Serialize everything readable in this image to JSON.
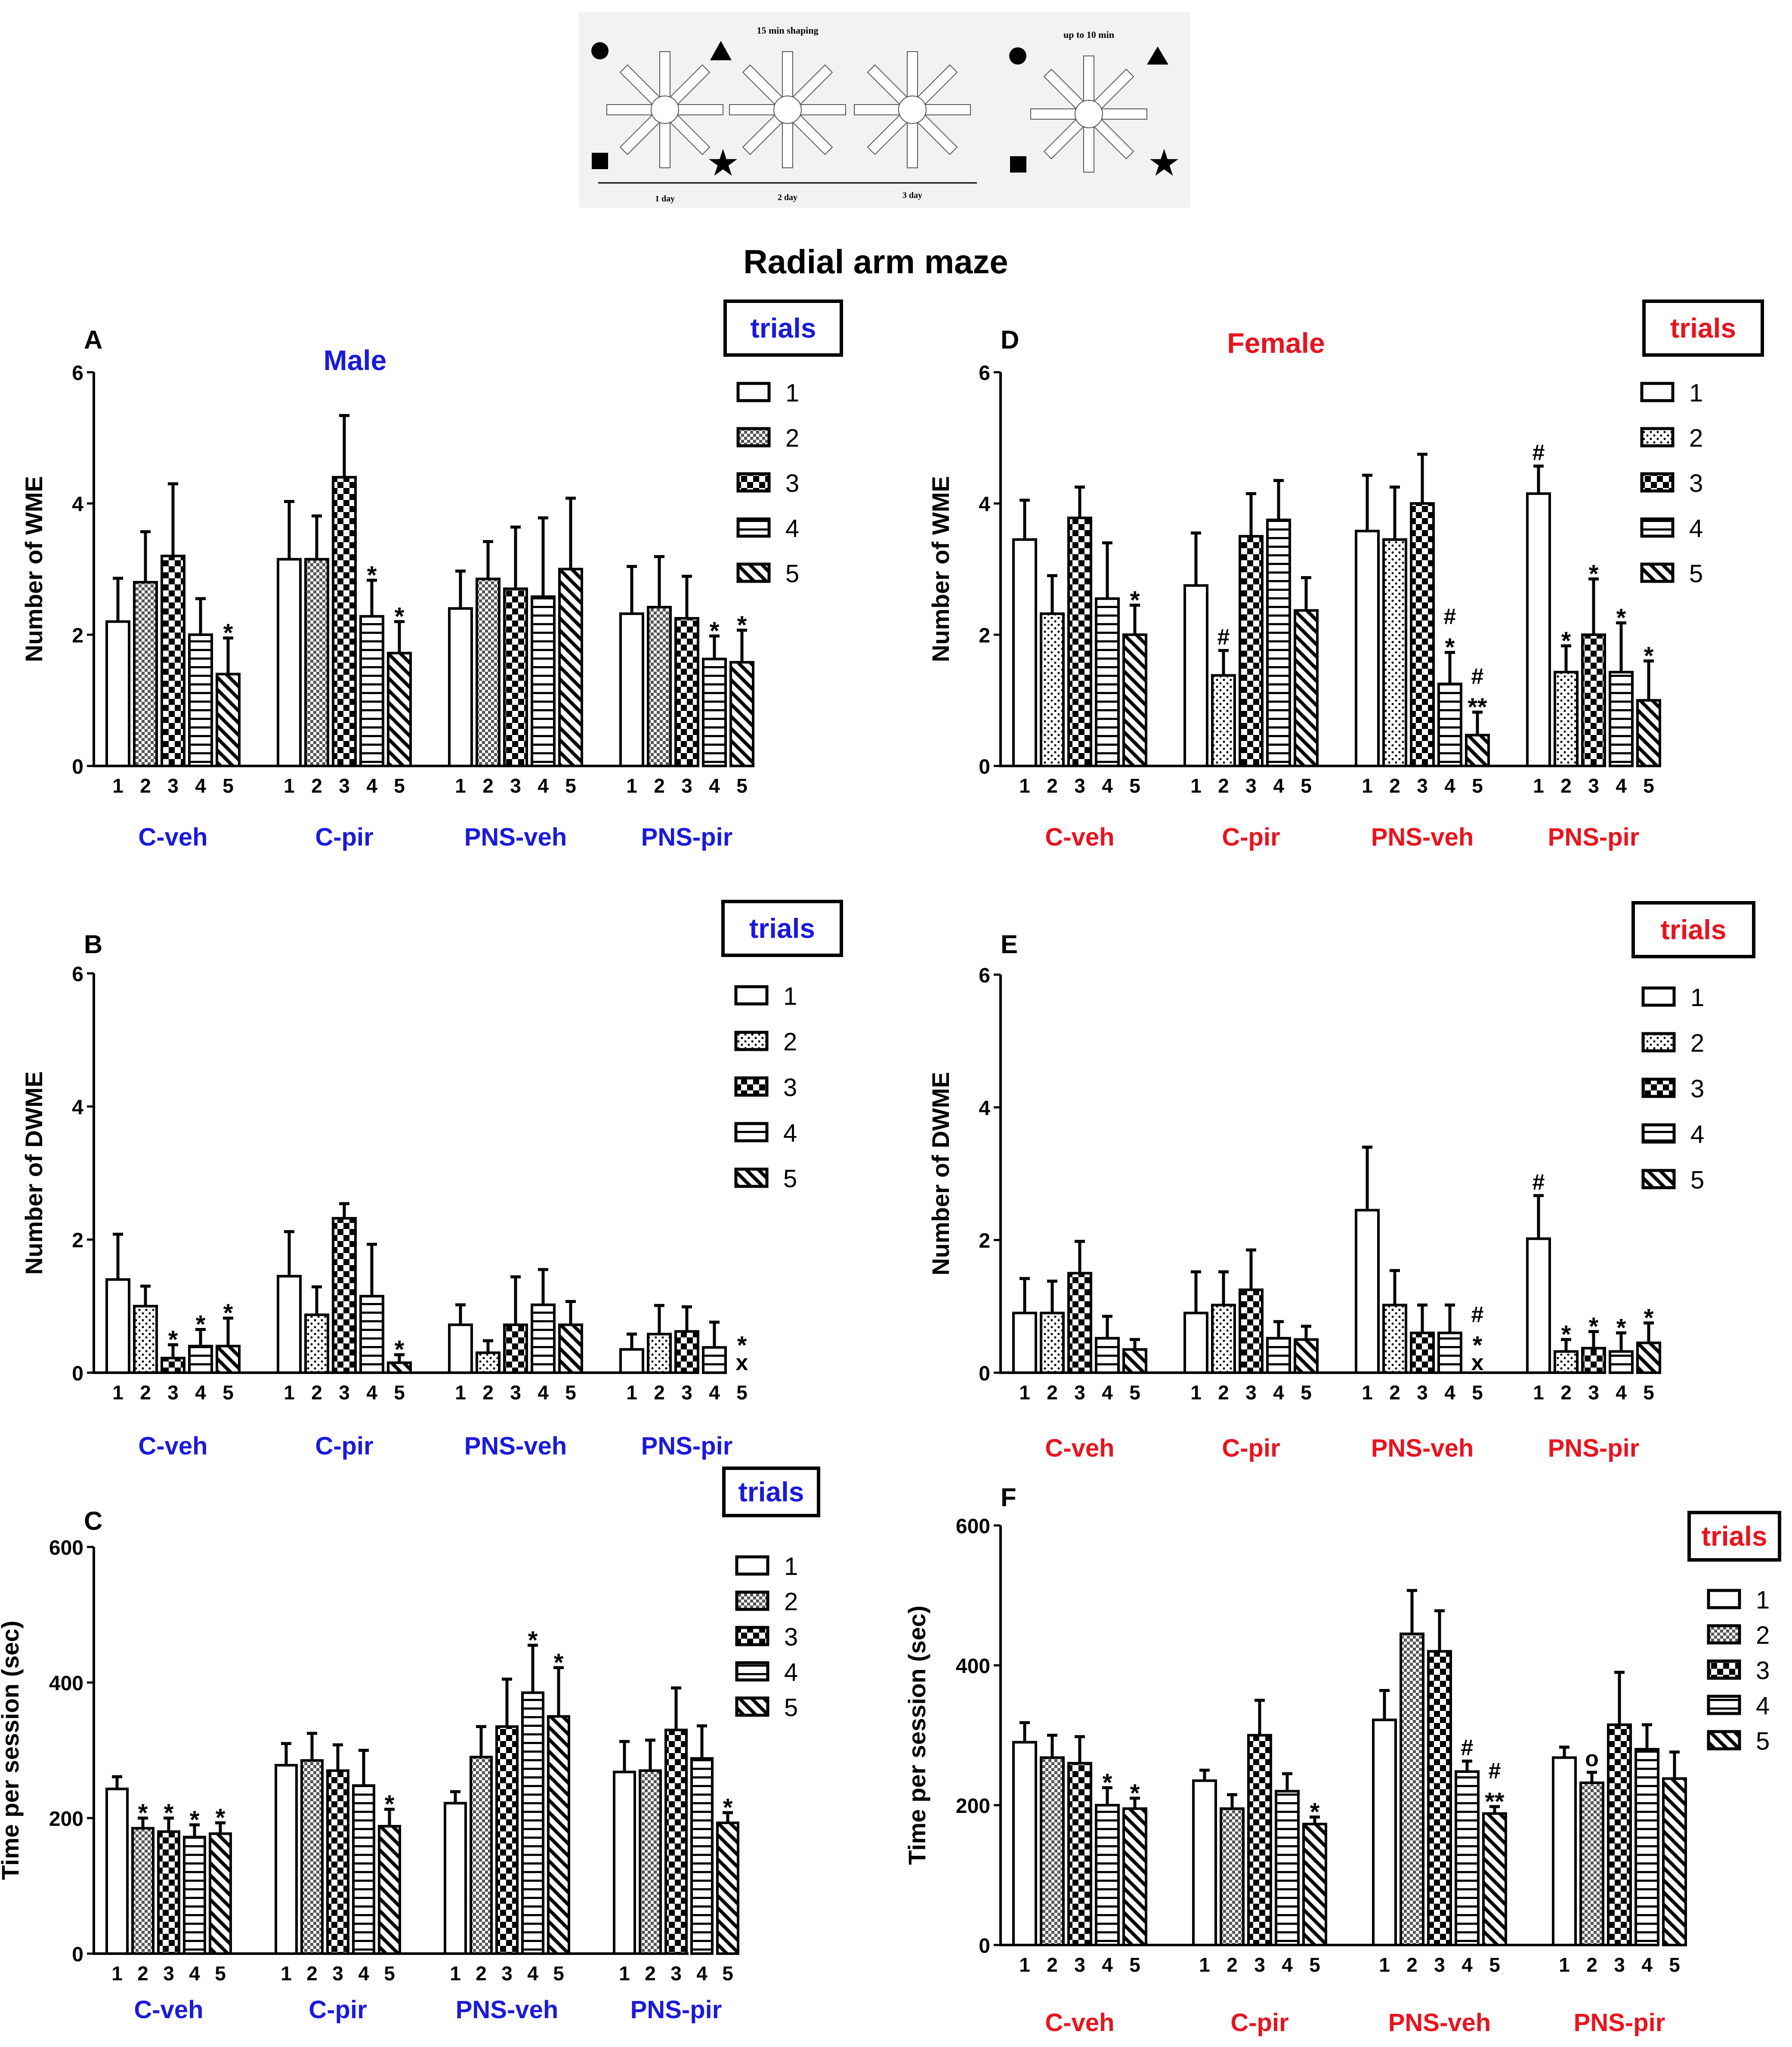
{
  "title": "Radial arm maze",
  "schematic": {
    "label_shaping": "15 min shaping",
    "label_up_to": "up to 10 min",
    "days": [
      "1 day",
      "2 day",
      "3 day"
    ]
  },
  "colors": {
    "blue": "#1a1adb",
    "red": "#e8141e",
    "black": "#000000"
  },
  "chart_data": [
    {
      "panel": "A",
      "type": "bar",
      "sex_label": "Male",
      "sex_color": "#1a1adb",
      "ylabel": "Number of WME",
      "ylim": [
        0,
        6
      ],
      "yticks": [
        0,
        2,
        4,
        6
      ],
      "legend_title": "trials",
      "legend_items": [
        "1",
        "2",
        "3",
        "4",
        "5"
      ],
      "trial_patterns": [
        "blank",
        "dense",
        "check",
        "hlines",
        "diag"
      ],
      "groups": [
        "C-veh",
        "C-pir",
        "PNS-veh",
        "PNS-pir"
      ],
      "trials": [
        "1",
        "2",
        "3",
        "4",
        "5"
      ],
      "values": [
        [
          2.2,
          2.8,
          3.2,
          2.0,
          1.4
        ],
        [
          3.15,
          3.15,
          4.4,
          2.28,
          1.72
        ],
        [
          2.4,
          2.85,
          2.7,
          2.58,
          3.0
        ],
        [
          2.32,
          2.42,
          2.25,
          1.63,
          1.58
        ]
      ],
      "errors": [
        [
          0.66,
          0.77,
          1.1,
          0.55,
          0.55
        ],
        [
          0.88,
          0.66,
          0.94,
          0.55,
          0.48
        ],
        [
          0.57,
          0.57,
          0.94,
          1.2,
          1.08
        ],
        [
          0.72,
          0.77,
          0.64,
          0.35,
          0.49
        ]
      ],
      "annotations": [
        [
          [],
          [],
          [],
          [],
          [
            "*"
          ]
        ],
        [
          [],
          [],
          [],
          [
            "*"
          ],
          [
            "*"
          ]
        ],
        [
          [],
          [],
          [],
          [],
          []
        ],
        [
          [],
          [],
          [],
          [
            "*"
          ],
          [
            "*"
          ]
        ]
      ]
    },
    {
      "panel": "B",
      "type": "bar",
      "ylabel": "Number of DWME",
      "ylim": [
        0,
        6
      ],
      "yticks": [
        0,
        2,
        4,
        6
      ],
      "legend_title": "trials",
      "legend_items": [
        "1",
        "2",
        "3",
        "4",
        "5"
      ],
      "trial_patterns": [
        "blank",
        "dots",
        "check",
        "hlines",
        "diag"
      ],
      "groups": [
        "C-veh",
        "C-pir",
        "PNS-veh",
        "PNS-pir"
      ],
      "trials": [
        "1",
        "2",
        "3",
        "4",
        "5"
      ],
      "values": [
        [
          1.4,
          1.0,
          0.22,
          0.4,
          0.4
        ],
        [
          1.45,
          0.87,
          2.32,
          1.15,
          0.15
        ],
        [
          0.72,
          0.3,
          0.72,
          1.02,
          0.72
        ],
        [
          0.35,
          0.58,
          0.62,
          0.38,
          0.0
        ]
      ],
      "errors": [
        [
          0.68,
          0.3,
          0.2,
          0.25,
          0.42
        ],
        [
          0.67,
          0.42,
          0.22,
          0.78,
          0.12
        ],
        [
          0.3,
          0.18,
          0.72,
          0.53,
          0.35
        ],
        [
          0.23,
          0.43,
          0.37,
          0.38,
          0.0
        ]
      ],
      "annotations": [
        [
          [],
          [],
          [
            "*"
          ],
          [
            "*"
          ],
          [
            "*"
          ]
        ],
        [
          [],
          [],
          [],
          [],
          [
            "*"
          ]
        ],
        [
          [],
          [],
          [],
          [],
          []
        ],
        [
          [],
          [],
          [],
          [],
          [
            "*",
            "x"
          ]
        ]
      ]
    },
    {
      "panel": "C",
      "type": "bar",
      "ylabel": "Time per session (sec)",
      "ylim": [
        0,
        600
      ],
      "yticks": [
        0,
        200,
        400,
        600
      ],
      "legend_title": "trials",
      "legend_items": [
        "1",
        "2",
        "3",
        "4",
        "5"
      ],
      "trial_patterns": [
        "blank",
        "dense",
        "check",
        "hlines",
        "diag"
      ],
      "groups": [
        "C-veh",
        "C-pir",
        "PNS-veh",
        "PNS-pir"
      ],
      "trials": [
        "1",
        "2",
        "3",
        "4",
        "5"
      ],
      "values": [
        [
          243,
          185,
          180,
          172,
          177
        ],
        [
          278,
          285,
          270,
          248,
          188
        ],
        [
          222,
          290,
          335,
          385,
          350
        ],
        [
          268,
          270,
          330,
          288,
          193
        ]
      ],
      "errors": [
        [
          18,
          15,
          20,
          18,
          16
        ],
        [
          32,
          40,
          38,
          52,
          25
        ],
        [
          17,
          45,
          70,
          70,
          72
        ],
        [
          45,
          45,
          62,
          48,
          15
        ]
      ],
      "annotations": [
        [
          [],
          [
            "*"
          ],
          [
            "*"
          ],
          [
            "*"
          ],
          [
            "*"
          ]
        ],
        [
          [],
          [],
          [],
          [],
          [
            "*"
          ]
        ],
        [
          [],
          [],
          [],
          [
            "*"
          ],
          [
            "*"
          ]
        ],
        [
          [],
          [],
          [],
          [],
          [
            "*"
          ]
        ]
      ]
    },
    {
      "panel": "D",
      "type": "bar",
      "sex_label": "Female",
      "sex_color": "#e8141e",
      "ylabel": "Number of WME",
      "ylim": [
        0,
        6
      ],
      "yticks": [
        0,
        2,
        4,
        6
      ],
      "legend_title": "trials",
      "legend_items": [
        "1",
        "2",
        "3",
        "4",
        "5"
      ],
      "trial_patterns": [
        "blank",
        "dots",
        "check",
        "hlines",
        "diag"
      ],
      "groups": [
        "C-veh",
        "C-pir",
        "PNS-veh",
        "PNS-pir"
      ],
      "trials": [
        "1",
        "2",
        "3",
        "4",
        "5"
      ],
      "values": [
        [
          3.45,
          2.32,
          3.78,
          2.55,
          2.0
        ],
        [
          2.75,
          1.38,
          3.5,
          3.75,
          2.37
        ],
        [
          3.58,
          3.45,
          4.0,
          1.25,
          0.47
        ],
        [
          4.15,
          1.43,
          2.0,
          1.43,
          1.0
        ]
      ],
      "errors": [
        [
          0.6,
          0.58,
          0.47,
          0.85,
          0.45
        ],
        [
          0.8,
          0.38,
          0.65,
          0.6,
          0.5
        ],
        [
          0.85,
          0.8,
          0.75,
          0.48,
          0.35
        ],
        [
          0.42,
          0.4,
          0.85,
          0.75,
          0.6
        ]
      ],
      "annotations": [
        [
          [],
          [],
          [],
          [],
          [
            "*"
          ]
        ],
        [
          [],
          [
            "#"
          ],
          [],
          [],
          []
        ],
        [
          [],
          [],
          [],
          [
            "#",
            "*"
          ],
          [
            "#",
            "**"
          ]
        ],
        [
          [
            "#"
          ],
          [
            "*"
          ],
          [
            "*"
          ],
          [
            "*"
          ],
          [
            "*"
          ]
        ]
      ]
    },
    {
      "panel": "E",
      "type": "bar",
      "ylabel": "Number of DWME",
      "ylim": [
        0,
        6
      ],
      "yticks": [
        0,
        2,
        4,
        6
      ],
      "legend_title": "trials",
      "legend_items": [
        "1",
        "2",
        "3",
        "4",
        "5"
      ],
      "trial_patterns": [
        "blank",
        "dots",
        "check",
        "hlines",
        "diag"
      ],
      "groups": [
        "C-veh",
        "C-pir",
        "PNS-veh",
        "PNS-pir"
      ],
      "trials": [
        "1",
        "2",
        "3",
        "4",
        "5"
      ],
      "values": [
        [
          0.9,
          0.9,
          1.5,
          0.52,
          0.35
        ],
        [
          0.9,
          1.02,
          1.25,
          0.52,
          0.5
        ],
        [
          2.45,
          1.02,
          0.6,
          0.6,
          0.0
        ],
        [
          2.02,
          0.32,
          0.37,
          0.32,
          0.45
        ]
      ],
      "errors": [
        [
          0.52,
          0.48,
          0.48,
          0.33,
          0.15
        ],
        [
          0.62,
          0.5,
          0.6,
          0.25,
          0.2
        ],
        [
          0.95,
          0.52,
          0.42,
          0.42,
          0.0
        ],
        [
          0.65,
          0.18,
          0.25,
          0.28,
          0.3
        ]
      ],
      "annotations": [
        [
          [],
          [],
          [],
          [],
          []
        ],
        [
          [],
          [],
          [],
          [],
          []
        ],
        [
          [],
          [],
          [],
          [],
          [
            "#",
            "*",
            "x"
          ]
        ],
        [
          [
            "#"
          ],
          [
            "*"
          ],
          [
            "*"
          ],
          [
            "*"
          ],
          [
            "*"
          ]
        ]
      ]
    },
    {
      "panel": "F",
      "type": "bar",
      "ylabel": "Time per session (sec)",
      "ylim": [
        0,
        600
      ],
      "yticks": [
        0,
        200,
        400,
        600
      ],
      "legend_title": "trials",
      "legend_items": [
        "1",
        "2",
        "3",
        "4",
        "5"
      ],
      "trial_patterns": [
        "blank",
        "dense",
        "check",
        "hlines",
        "diag"
      ],
      "groups": [
        "C-veh",
        "C-pir",
        "PNS-veh",
        "PNS-pir"
      ],
      "trials": [
        "1",
        "2",
        "3",
        "4",
        "5"
      ],
      "values": [
        [
          290,
          268,
          260,
          200,
          195
        ],
        [
          235,
          195,
          300,
          220,
          173
        ],
        [
          322,
          445,
          420,
          248,
          188
        ],
        [
          268,
          232,
          315,
          280,
          238
        ]
      ],
      "errors": [
        [
          28,
          32,
          38,
          25,
          15
        ],
        [
          15,
          20,
          50,
          25,
          10
        ],
        [
          42,
          62,
          58,
          15,
          10
        ],
        [
          15,
          15,
          75,
          35,
          38
        ]
      ],
      "annotations": [
        [
          [],
          [],
          [],
          [
            "*"
          ],
          [
            "*"
          ]
        ],
        [
          [],
          [],
          [],
          [],
          [
            "*"
          ]
        ],
        [
          [],
          [],
          [],
          [
            "#"
          ],
          [
            "#",
            "**"
          ]
        ],
        [
          [],
          [
            "o"
          ],
          [],
          [],
          []
        ]
      ]
    }
  ]
}
